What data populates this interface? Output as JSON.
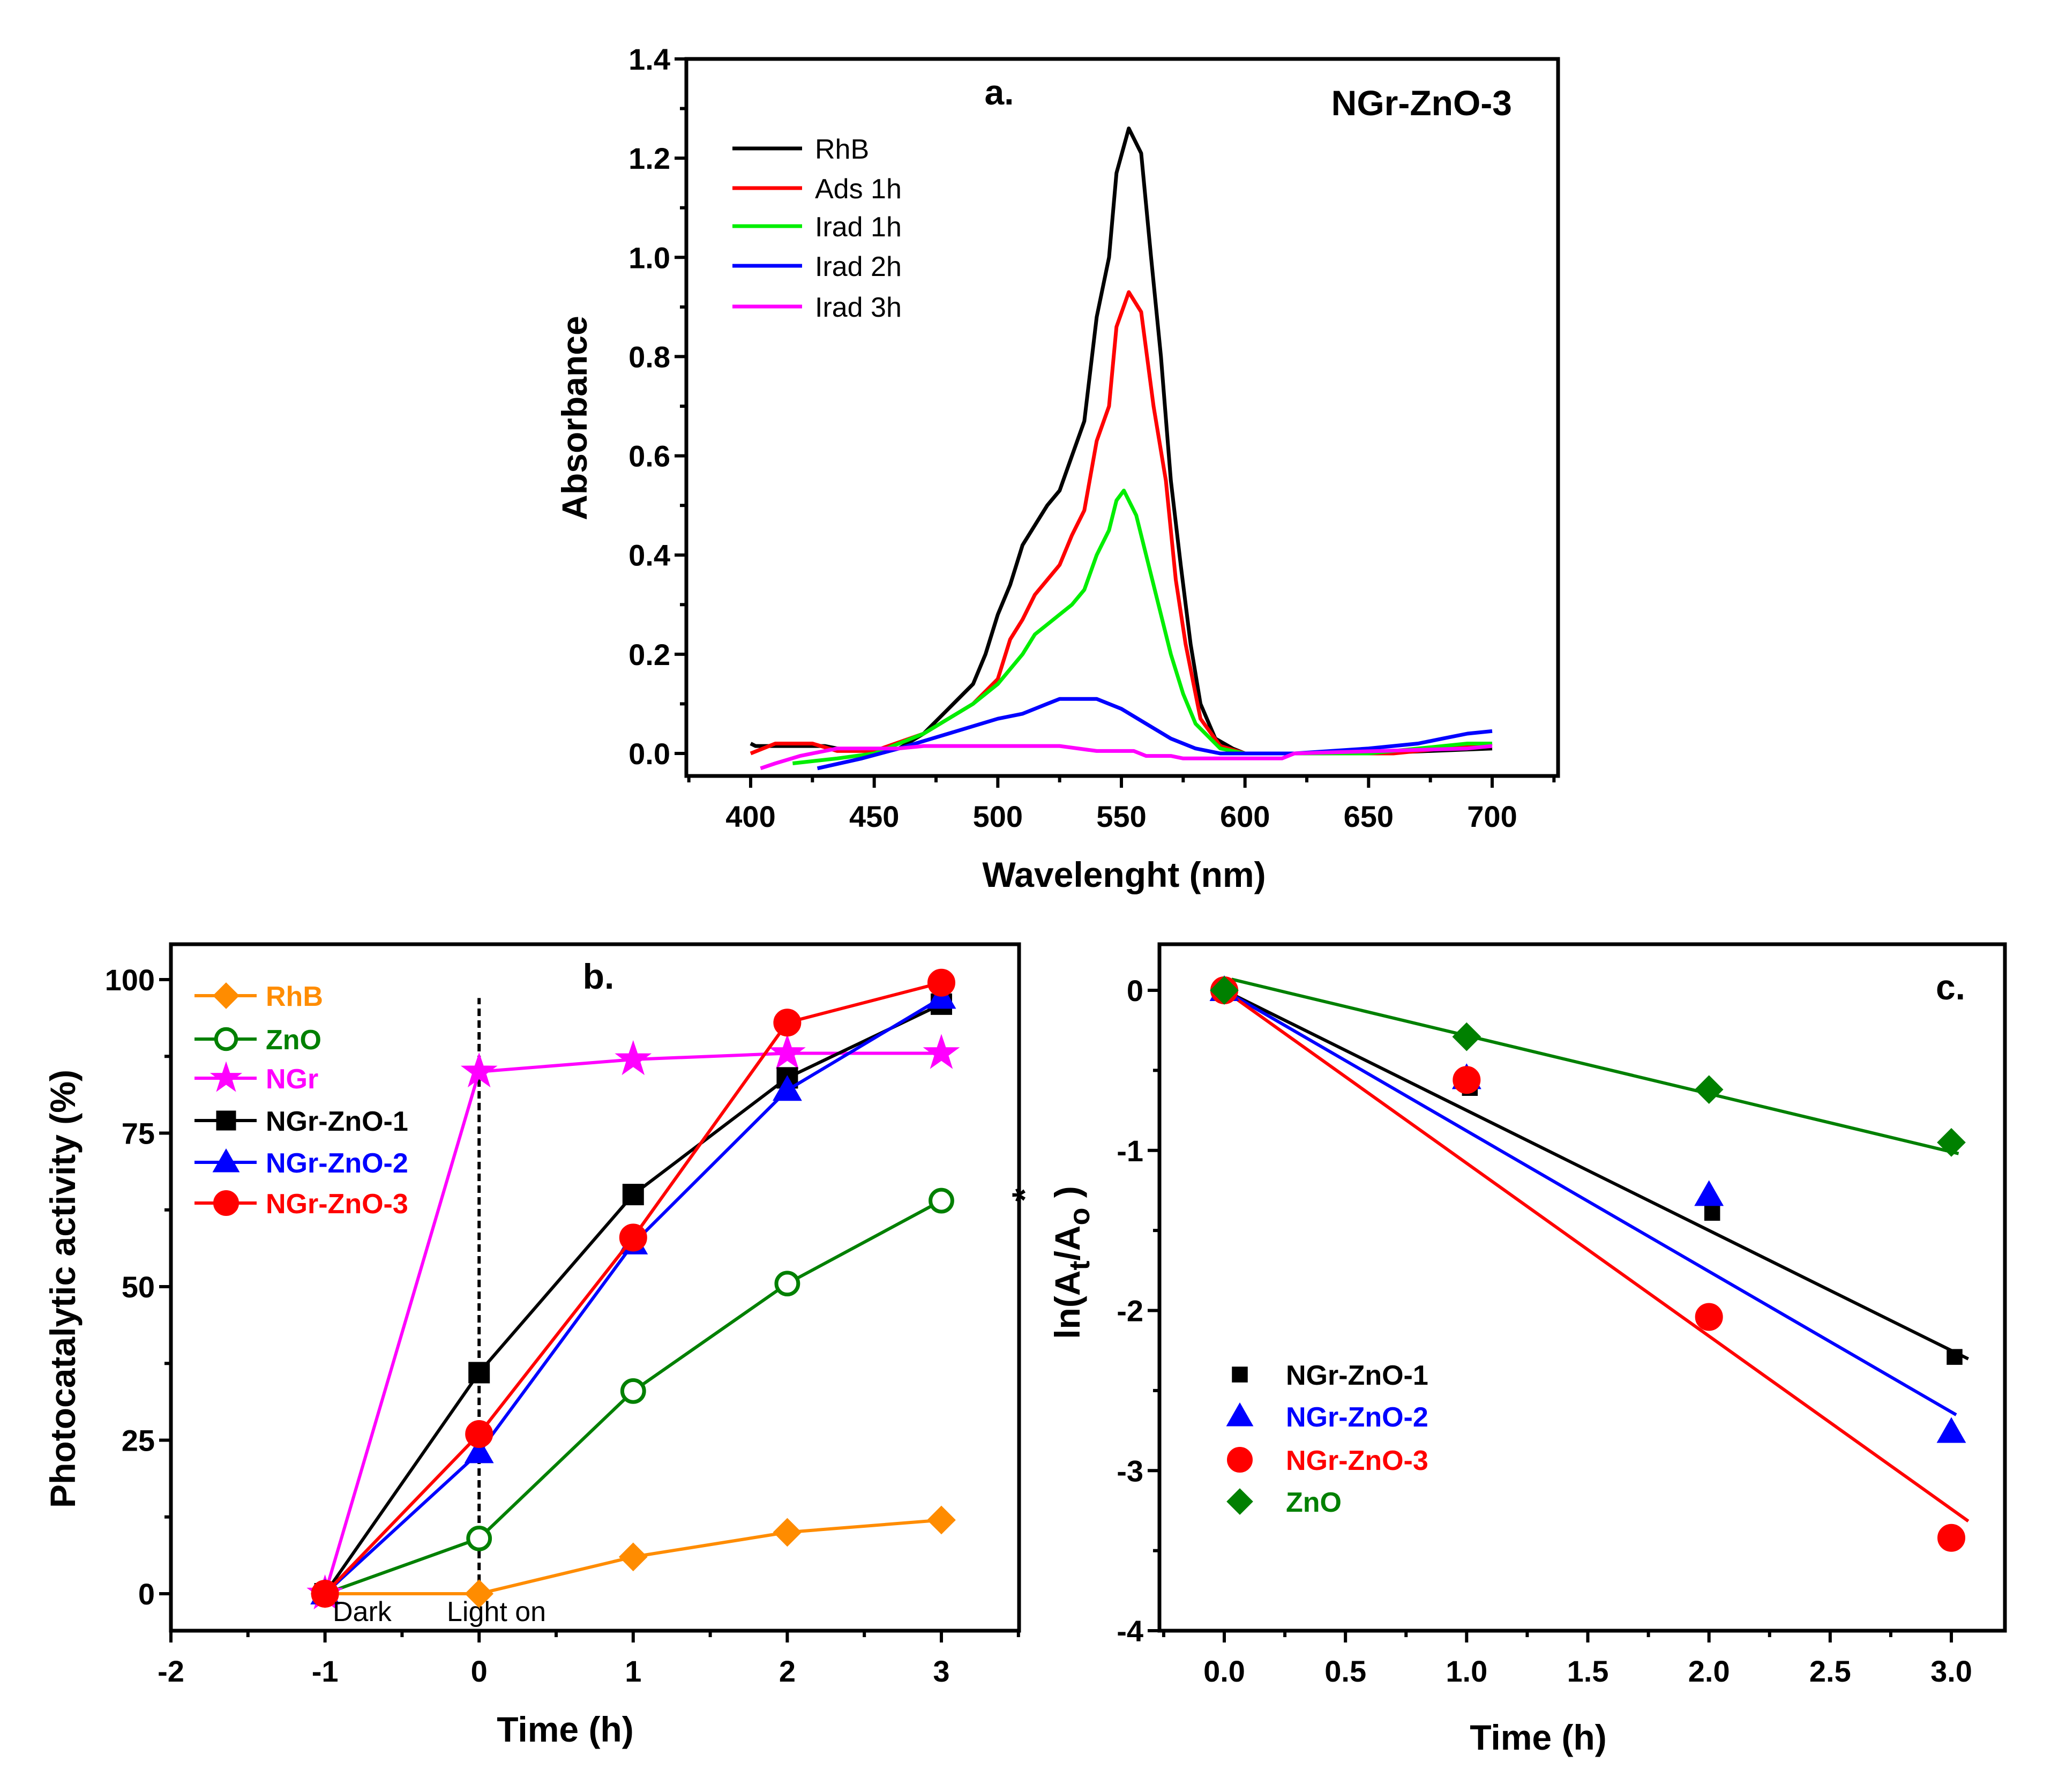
{
  "chart_data": [
    {
      "panel": "a",
      "type": "line",
      "panel_label": "a.",
      "annotation": "NGr-ZnO-3",
      "xlabel": "Wavelenght  (nm)",
      "ylabel": "Absorbance",
      "xlim": [
        375,
        750
      ],
      "ylim": [
        -0.03,
        1.4
      ],
      "xticks": [
        400,
        450,
        500,
        550,
        600,
        650,
        700
      ],
      "xtick_labels": [
        "400",
        "450",
        "500",
        "550",
        "600",
        "650",
        "700"
      ],
      "yticks": [
        0,
        0.2,
        0.4,
        0.6,
        0.8,
        1.0,
        1.2,
        1.4
      ],
      "ytick_labels": [
        "0.0",
        "0.2",
        "0.4",
        "0.6",
        "0.8",
        "1.0",
        "1.2",
        "1.4"
      ],
      "legend_position": "top-left",
      "series": [
        {
          "name": "RhB",
          "color": "#000000",
          "points": [
            [
              400,
              0.02
            ],
            [
              402,
              0.015
            ],
            [
              430,
              0.015
            ],
            [
              435,
              0.01
            ],
            [
              450,
              0.005
            ],
            [
              460,
              0.01
            ],
            [
              470,
              0.04
            ],
            [
              480,
              0.09
            ],
            [
              490,
              0.14
            ],
            [
              495,
              0.2
            ],
            [
              500,
              0.28
            ],
            [
              505,
              0.34
            ],
            [
              510,
              0.42
            ],
            [
              515,
              0.46
            ],
            [
              520,
              0.5
            ],
            [
              525,
              0.53
            ],
            [
              530,
              0.6
            ],
            [
              535,
              0.67
            ],
            [
              540,
              0.88
            ],
            [
              545,
              1.0
            ],
            [
              548,
              1.17
            ],
            [
              553,
              1.26
            ],
            [
              558,
              1.21
            ],
            [
              562,
              1.0
            ],
            [
              566,
              0.8
            ],
            [
              570,
              0.55
            ],
            [
              574,
              0.38
            ],
            [
              578,
              0.22
            ],
            [
              582,
              0.1
            ],
            [
              588,
              0.03
            ],
            [
              595,
              0.01
            ],
            [
              600,
              0.0
            ],
            [
              650,
              0.0
            ],
            [
              700,
              0.01
            ]
          ]
        },
        {
          "name": "Ads 1h",
          "color": "#ff0000",
          "points": [
            [
              400,
              0
            ],
            [
              410,
              0.02
            ],
            [
              425,
              0.02
            ],
            [
              435,
              0.005
            ],
            [
              450,
              0.005
            ],
            [
              470,
              0.04
            ],
            [
              490,
              0.1
            ],
            [
              500,
              0.15
            ],
            [
              505,
              0.23
            ],
            [
              510,
              0.27
            ],
            [
              515,
              0.32
            ],
            [
              520,
              0.35
            ],
            [
              525,
              0.38
            ],
            [
              530,
              0.44
            ],
            [
              535,
              0.49
            ],
            [
              540,
              0.63
            ],
            [
              545,
              0.7
            ],
            [
              548,
              0.86
            ],
            [
              553,
              0.93
            ],
            [
              558,
              0.89
            ],
            [
              563,
              0.7
            ],
            [
              568,
              0.55
            ],
            [
              572,
              0.35
            ],
            [
              576,
              0.22
            ],
            [
              582,
              0.07
            ],
            [
              590,
              0.015
            ],
            [
              600,
              0
            ],
            [
              660,
              0
            ],
            [
              700,
              0.02
            ]
          ]
        },
        {
          "name": "Irad 1h",
          "color": "#00ee00",
          "points": [
            [
              417,
              -0.02
            ],
            [
              435,
              -0.01
            ],
            [
              450,
              0
            ],
            [
              470,
              0.04
            ],
            [
              490,
              0.1
            ],
            [
              500,
              0.14
            ],
            [
              505,
              0.17
            ],
            [
              510,
              0.2
            ],
            [
              515,
              0.24
            ],
            [
              520,
              0.26
            ],
            [
              530,
              0.3
            ],
            [
              535,
              0.33
            ],
            [
              540,
              0.4
            ],
            [
              545,
              0.45
            ],
            [
              548,
              0.51
            ],
            [
              551,
              0.53
            ],
            [
              556,
              0.48
            ],
            [
              560,
              0.4
            ],
            [
              565,
              0.3
            ],
            [
              570,
              0.2
            ],
            [
              575,
              0.12
            ],
            [
              580,
              0.06
            ],
            [
              590,
              0.01
            ],
            [
              600,
              0
            ],
            [
              650,
              0
            ],
            [
              690,
              0.02
            ],
            [
              700,
              0.02
            ]
          ]
        },
        {
          "name": "Irad 2h",
          "color": "#0000ff",
          "points": [
            [
              427,
              -0.03
            ],
            [
              445,
              -0.01
            ],
            [
              460,
              0.01
            ],
            [
              480,
              0.04
            ],
            [
              500,
              0.07
            ],
            [
              510,
              0.08
            ],
            [
              520,
              0.1
            ],
            [
              525,
              0.11
            ],
            [
              540,
              0.11
            ],
            [
              550,
              0.09
            ],
            [
              560,
              0.06
            ],
            [
              570,
              0.03
            ],
            [
              580,
              0.01
            ],
            [
              590,
              0
            ],
            [
              620,
              0
            ],
            [
              650,
              0.01
            ],
            [
              670,
              0.02
            ],
            [
              680,
              0.03
            ],
            [
              690,
              0.04
            ],
            [
              700,
              0.045
            ]
          ]
        },
        {
          "name": "Irad 3h",
          "color": "#ff00ff",
          "points": [
            [
              404,
              -0.03
            ],
            [
              410,
              -0.02
            ],
            [
              420,
              -0.005
            ],
            [
              435,
              0.01
            ],
            [
              460,
              0.01
            ],
            [
              470,
              0.015
            ],
            [
              525,
              0.015
            ],
            [
              540,
              0.005
            ],
            [
              555,
              0.005
            ],
            [
              560,
              -0.005
            ],
            [
              570,
              -0.005
            ],
            [
              575,
              -0.01
            ],
            [
              615,
              -0.01
            ],
            [
              620,
              0
            ],
            [
              690,
              0.01
            ],
            [
              700,
              0.015
            ]
          ]
        }
      ]
    },
    {
      "panel": "b",
      "type": "line",
      "panel_label": "b.",
      "annotations": [
        "Dark",
        "Light on"
      ],
      "xlabel": "Time  (h)",
      "ylabel": "Photocatalytic activity  (%)",
      "xlim": [
        -2,
        3.5
      ],
      "ylim": [
        -6,
        106
      ],
      "xticks": [
        -2,
        -1,
        0,
        1,
        2,
        3
      ],
      "xtick_labels": [
        "-2",
        "-1",
        "0",
        "1",
        "2",
        "3"
      ],
      "yticks": [
        0,
        25,
        50,
        75,
        100
      ],
      "ytick_labels": [
        "0",
        "25",
        "50",
        "75",
        "100"
      ],
      "vline": {
        "x": 0,
        "ymax": 97,
        "style": "dashed"
      },
      "legend_position": "top-left",
      "x": [
        -1,
        0,
        1,
        2,
        3
      ],
      "series": [
        {
          "name": "RhB",
          "color": "#ff8c00",
          "marker": "diamond",
          "values": [
            0,
            0,
            6,
            10,
            12
          ]
        },
        {
          "name": "ZnO",
          "color": "#008000",
          "marker": "open-circle",
          "values": [
            0,
            9,
            33,
            50.5,
            64
          ]
        },
        {
          "name": "NGr",
          "color": "#ff00ff",
          "marker": "star",
          "values": [
            0,
            85,
            87,
            88,
            88
          ]
        },
        {
          "name": "NGr-ZnO-1",
          "color": "#000000",
          "marker": "square",
          "values": [
            0,
            36,
            65,
            84,
            96
          ]
        },
        {
          "name": "NGr-ZnO-2",
          "color": "#0000ff",
          "marker": "triangle",
          "values": [
            0,
            23,
            57,
            82,
            97
          ]
        },
        {
          "name": "NGr-ZnO-3",
          "color": "#ff0000",
          "marker": "circle",
          "values": [
            0,
            26,
            58,
            93,
            99.5
          ]
        }
      ]
    },
    {
      "panel": "c",
      "type": "scatter",
      "panel_label": "c.",
      "xlabel": "Time  (h)",
      "ylabel": "ln(At/Ao)*",
      "ylabel_parts": {
        "pre": "ln(A",
        "sub1": "t",
        "mid": "/A",
        "sub2": "o",
        "post": " )",
        "sup": "*"
      },
      "xlim": [
        -0.25,
        3.25
      ],
      "ylim": [
        -4,
        0.25
      ],
      "xticks": [
        0,
        0.5,
        1,
        1.5,
        2,
        2.5,
        3
      ],
      "xtick_labels": [
        "0.0",
        "0.5",
        "1.0",
        "1.5",
        "2.0",
        "2.5",
        "3.0"
      ],
      "yticks": [
        0,
        -1,
        -2,
        -3,
        -4
      ],
      "ytick_labels": [
        "0",
        "-1",
        "-2",
        "-3",
        "-4"
      ],
      "legend_position": "center-left",
      "x": [
        0,
        1,
        2,
        3
      ],
      "series": [
        {
          "name": "NGr-ZnO-1",
          "color": "#000000",
          "marker": "square",
          "values": [
            0,
            -0.61,
            -1.39,
            -2.29
          ],
          "fit": {
            "slope": -0.75,
            "intercept": 0,
            "x_range": [
              0,
              3.07
            ]
          }
        },
        {
          "name": "NGr-ZnO-2",
          "color": "#0000ff",
          "marker": "triangle",
          "values": [
            0,
            -0.55,
            -1.28,
            -2.76
          ],
          "fit": {
            "slope": -0.878,
            "intercept": 0,
            "x_range": [
              0,
              3.02
            ]
          }
        },
        {
          "name": "NGr-ZnO-3",
          "color": "#ff0000",
          "marker": "circle",
          "values": [
            0,
            -0.56,
            -2.04,
            -3.42
          ],
          "fit": {
            "slope": -1.08,
            "intercept": 0,
            "x_range": [
              0,
              3.07
            ]
          }
        },
        {
          "name": "ZnO",
          "color": "#008000",
          "marker": "diamond",
          "values": [
            0,
            -0.29,
            -0.62,
            -0.95
          ],
          "fit": {
            "slope": -0.363,
            "intercept": 0.08,
            "x_range": [
              0.03,
              3.03
            ]
          }
        }
      ]
    }
  ]
}
